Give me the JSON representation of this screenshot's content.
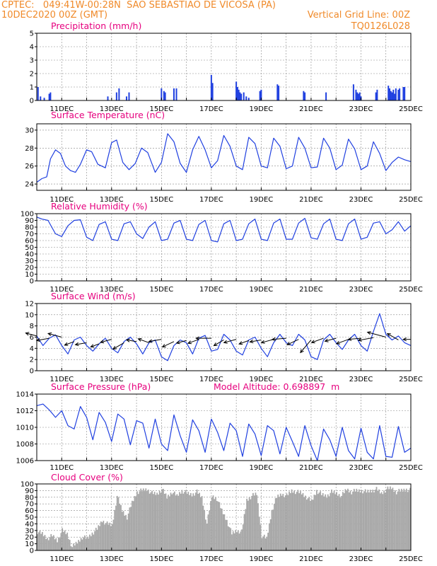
{
  "header": {
    "line1_left": "CPTEC:   049:41W-00:28N  SAO SEBASTIAO DE VICOSA (PA)",
    "line2_left": "10DEC2020 00Z (GMT)",
    "line1_right": "Vertical Grid Line: 00Z",
    "line2_right": "TQ0126L028"
  },
  "x_axis": {
    "start_day": 10,
    "end_day": 25,
    "tick_labels": [
      "11DEC",
      "13DEC",
      "15DEC",
      "17DEC",
      "19DEC",
      "21DEC",
      "23DEC",
      "25DEC"
    ],
    "tick_days": [
      11,
      13,
      15,
      17,
      19,
      21,
      23,
      25
    ]
  },
  "colors": {
    "line": "#2040e0",
    "bar": "#2040e0",
    "cloud": "#a8a8a8",
    "wind_arrow": "#000000"
  },
  "chart_data": [
    {
      "type": "bar",
      "name": "precipitation",
      "title": "Precipitation (mm/h)",
      "ylim": [
        0,
        5
      ],
      "yticks": [
        0,
        1,
        2,
        3,
        4,
        5
      ],
      "x": [
        10.05,
        10.15,
        10.3,
        10.5,
        10.55,
        12.85,
        13.2,
        13.3,
        13.6,
        13.7,
        15.0,
        15.1,
        15.15,
        15.5,
        15.6,
        17.0,
        17.05,
        18.0,
        18.05,
        18.1,
        18.15,
        18.2,
        18.3,
        18.4,
        18.5,
        18.95,
        19.0,
        19.65,
        19.7,
        20.7,
        20.75,
        21.6,
        22.7,
        22.8,
        22.85,
        22.9,
        22.95,
        23.0,
        23.6,
        23.65,
        24.1,
        24.15,
        24.2,
        24.25,
        24.3,
        24.35,
        24.4,
        24.5,
        24.55,
        24.7,
        24.75
      ],
      "values": [
        1.0,
        0.3,
        0.2,
        0.5,
        0.6,
        0.3,
        0.6,
        0.9,
        0.3,
        0.6,
        0.9,
        0.7,
        0.6,
        0.9,
        0.9,
        1.9,
        1.3,
        1.4,
        1.0,
        0.8,
        0.6,
        0.5,
        0.6,
        0.3,
        0.2,
        0.7,
        0.8,
        1.2,
        1.1,
        0.7,
        0.6,
        0.6,
        1.2,
        0.8,
        0.6,
        0.5,
        0.6,
        0.3,
        0.6,
        0.8,
        1.1,
        0.9,
        0.7,
        0.6,
        0.8,
        0.5,
        0.9,
        0.8,
        0.9,
        1.0,
        1.0
      ]
    },
    {
      "type": "line",
      "name": "surface_temperature",
      "title": "Surface Temperature (nC)",
      "ylim": [
        23.3,
        30.7
      ],
      "yticks": [
        24,
        26,
        28,
        30
      ],
      "x": [
        10.0,
        10.2,
        10.4,
        10.55,
        10.75,
        10.95,
        11.15,
        11.35,
        11.55,
        11.75,
        12.0,
        12.2,
        12.45,
        12.75,
        13.0,
        13.2,
        13.45,
        13.7,
        13.95,
        14.2,
        14.45,
        14.75,
        15.0,
        15.25,
        15.5,
        15.75,
        16.0,
        16.25,
        16.5,
        16.75,
        17.0,
        17.25,
        17.5,
        17.75,
        18.0,
        18.25,
        18.5,
        18.75,
        19.0,
        19.25,
        19.5,
        19.75,
        20.0,
        20.25,
        20.5,
        20.75,
        21.0,
        21.25,
        21.5,
        21.75,
        22.0,
        22.25,
        22.5,
        22.75,
        23.0,
        23.25,
        23.5,
        23.75,
        24.0,
        24.25,
        24.5,
        24.75,
        25.0
      ],
      "values": [
        24.2,
        24.6,
        24.8,
        26.8,
        27.8,
        27.4,
        26.0,
        25.5,
        25.3,
        26.2,
        27.8,
        27.6,
        26.2,
        25.8,
        28.6,
        28.9,
        26.4,
        25.6,
        26.3,
        28.0,
        27.5,
        25.3,
        26.4,
        29.6,
        28.7,
        26.3,
        25.3,
        27.8,
        29.3,
        27.8,
        25.8,
        26.6,
        29.4,
        28.2,
        26.0,
        25.6,
        29.2,
        28.5,
        26.0,
        25.8,
        29.1,
        28.2,
        25.7,
        26.0,
        29.2,
        28.0,
        25.8,
        25.9,
        29.1,
        28.0,
        25.6,
        26.1,
        29.0,
        27.9,
        25.6,
        26.0,
        28.7,
        27.4,
        25.5,
        26.4,
        27.0,
        26.7,
        26.5
      ]
    },
    {
      "type": "line",
      "name": "relative_humidity",
      "title": "Relative Humidity (%)",
      "ylim": [
        0,
        100
      ],
      "yticks": [
        0,
        10,
        20,
        30,
        40,
        50,
        60,
        70,
        80,
        90,
        100
      ],
      "x": [
        10.0,
        10.2,
        10.45,
        10.75,
        11.0,
        11.25,
        11.5,
        11.75,
        12.0,
        12.25,
        12.5,
        12.75,
        13.0,
        13.25,
        13.5,
        13.75,
        14.0,
        14.25,
        14.5,
        14.75,
        15.0,
        15.25,
        15.5,
        15.75,
        16.0,
        16.25,
        16.5,
        16.75,
        17.0,
        17.25,
        17.5,
        17.75,
        18.0,
        18.25,
        18.5,
        18.75,
        19.0,
        19.25,
        19.5,
        19.75,
        20.0,
        20.25,
        20.5,
        20.75,
        21.0,
        21.25,
        21.5,
        21.75,
        22.0,
        22.25,
        22.5,
        22.75,
        23.0,
        23.25,
        23.5,
        23.75,
        24.0,
        24.25,
        24.5,
        24.75,
        25.0
      ],
      "values": [
        95,
        92,
        90,
        70,
        66,
        82,
        90,
        91,
        65,
        60,
        84,
        88,
        62,
        60,
        85,
        88,
        70,
        63,
        80,
        88,
        60,
        62,
        86,
        90,
        62,
        60,
        84,
        90,
        60,
        58,
        85,
        90,
        60,
        62,
        85,
        92,
        62,
        60,
        86,
        92,
        62,
        62,
        86,
        93,
        64,
        62,
        85,
        92,
        62,
        60,
        85,
        92,
        62,
        65,
        86,
        88,
        70,
        76,
        88,
        74,
        82
      ]
    },
    {
      "type": "line",
      "name": "surface_wind",
      "title": "Surface Wind (m/s)",
      "ylim": [
        0,
        12
      ],
      "yticks": [
        0,
        2,
        4,
        6,
        8,
        10,
        12
      ],
      "x": [
        10.0,
        10.25,
        10.5,
        10.75,
        11.0,
        11.25,
        11.5,
        11.75,
        12.0,
        12.25,
        12.5,
        12.75,
        13.0,
        13.25,
        13.5,
        13.75,
        14.0,
        14.25,
        14.5,
        14.75,
        15.0,
        15.25,
        15.5,
        15.75,
        16.0,
        16.25,
        16.5,
        16.75,
        17.0,
        17.25,
        17.5,
        17.75,
        18.0,
        18.25,
        18.5,
        18.75,
        19.0,
        19.25,
        19.5,
        19.75,
        20.0,
        20.25,
        20.5,
        20.75,
        21.0,
        21.25,
        21.5,
        21.75,
        22.0,
        22.25,
        22.5,
        22.75,
        23.0,
        23.25,
        23.5,
        23.75,
        24.0,
        24.25,
        24.5,
        24.75,
        25.0
      ],
      "values": [
        6.2,
        4.5,
        5.8,
        6.4,
        4.5,
        3.0,
        5.5,
        6.0,
        4.5,
        3.5,
        4.8,
        5.8,
        4.0,
        3.2,
        5.2,
        6.0,
        4.8,
        3.0,
        5.0,
        5.5,
        2.5,
        1.8,
        4.5,
        5.5,
        5.0,
        3.0,
        5.8,
        6.3,
        3.5,
        3.8,
        6.5,
        5.5,
        3.5,
        2.8,
        5.5,
        6.0,
        4.0,
        2.5,
        5.0,
        6.5,
        5.0,
        4.5,
        6.5,
        5.5,
        2.5,
        2.0,
        5.5,
        6.5,
        5.0,
        3.8,
        5.5,
        6.5,
        4.5,
        3.5,
        7.0,
        10.2,
        6.5,
        5.5,
        6.2,
        5.0,
        4.5
      ]
    },
    {
      "type": "line",
      "name": "surface_pressure",
      "title": "Surface Pressure (hPa)",
      "annotation": "Model Altitude: 0.698897  m",
      "ylim": [
        1006,
        1014
      ],
      "yticks": [
        1006,
        1008,
        1010,
        1012,
        1014
      ],
      "x": [
        10.0,
        10.25,
        10.5,
        10.75,
        11.0,
        11.25,
        11.5,
        11.75,
        12.0,
        12.25,
        12.5,
        12.75,
        13.0,
        13.25,
        13.5,
        13.75,
        14.0,
        14.25,
        14.5,
        14.75,
        15.0,
        15.25,
        15.5,
        15.75,
        16.0,
        16.25,
        16.5,
        16.75,
        17.0,
        17.25,
        17.5,
        17.75,
        18.0,
        18.25,
        18.5,
        18.75,
        19.0,
        19.25,
        19.5,
        19.75,
        20.0,
        20.25,
        20.5,
        20.75,
        21.0,
        21.25,
        21.5,
        21.75,
        22.0,
        22.25,
        22.5,
        22.75,
        23.0,
        23.25,
        23.5,
        23.75,
        24.0,
        24.25,
        24.5,
        24.75,
        25.0
      ],
      "values": [
        1012.6,
        1012.8,
        1012.1,
        1011.2,
        1012.0,
        1010.2,
        1009.8,
        1012.5,
        1011.2,
        1008.5,
        1011.8,
        1010.6,
        1008.3,
        1011.6,
        1011.0,
        1007.9,
        1010.8,
        1010.5,
        1007.5,
        1011.0,
        1008.0,
        1007.2,
        1011.5,
        1009.0,
        1007.0,
        1010.9,
        1009.6,
        1007.0,
        1011.0,
        1009.4,
        1007.2,
        1010.5,
        1009.6,
        1006.5,
        1010.4,
        1009.2,
        1006.6,
        1010.2,
        1009.6,
        1006.8,
        1010.0,
        1008.3,
        1006.5,
        1010.2,
        1007.8,
        1006.0,
        1009.8,
        1008.5,
        1006.5,
        1010.0,
        1007.2,
        1006.2,
        1009.9,
        1007.0,
        1006.2,
        1010.2,
        1006.5,
        1006.4,
        1010.1,
        1007.0,
        1007.5
      ]
    },
    {
      "type": "area",
      "name": "cloud_cover",
      "title": "Cloud Cover (%)",
      "ylim": [
        0,
        100
      ],
      "yticks": [
        0,
        10,
        20,
        30,
        40,
        50,
        60,
        70,
        80,
        90,
        100
      ],
      "x": [
        10.0,
        10.2,
        10.4,
        10.6,
        10.8,
        11.0,
        11.2,
        11.4,
        11.6,
        11.8,
        12.0,
        12.2,
        12.4,
        12.6,
        12.8,
        13.0,
        13.2,
        13.4,
        13.6,
        13.8,
        14.0,
        14.2,
        14.4,
        14.6,
        14.8,
        15.0,
        15.2,
        15.4,
        15.6,
        15.8,
        16.0,
        16.2,
        16.4,
        16.6,
        16.8,
        17.0,
        17.2,
        17.4,
        17.6,
        17.8,
        18.0,
        18.2,
        18.4,
        18.6,
        18.8,
        19.0,
        19.2,
        19.4,
        19.6,
        19.8,
        20.0,
        20.2,
        20.4,
        20.6,
        20.8,
        21.0,
        21.2,
        21.4,
        21.6,
        21.8,
        22.0,
        22.2,
        22.4,
        22.6,
        22.8,
        23.0,
        23.2,
        23.4,
        23.6,
        23.8,
        24.0,
        24.2,
        24.4,
        24.6,
        24.8,
        25.0
      ],
      "values": [
        28,
        25,
        18,
        22,
        15,
        30,
        25,
        5,
        12,
        20,
        18,
        26,
        32,
        45,
        40,
        38,
        82,
        60,
        50,
        72,
        88,
        90,
        92,
        86,
        85,
        92,
        80,
        88,
        82,
        90,
        86,
        84,
        88,
        80,
        40,
        82,
        78,
        60,
        45,
        25,
        30,
        28,
        76,
        82,
        85,
        22,
        18,
        60,
        80,
        85,
        82,
        90,
        88,
        86,
        80,
        74,
        90,
        84,
        82,
        88,
        86,
        82,
        92,
        88,
        90,
        90,
        88,
        90,
        92,
        86,
        92,
        94,
        88,
        90,
        92,
        90
      ]
    },
    {
      "type": "vector",
      "name": "wind_direction_arrows",
      "note": "arrow direction in degrees (0 = pointing east), length relative",
      "x": [
        10.0,
        10.5,
        11.0,
        11.5,
        12.0,
        12.5,
        13.0,
        13.5,
        14.0,
        14.5,
        15.0,
        15.5,
        16.0,
        16.5,
        17.0,
        17.5,
        18.0,
        18.5,
        19.0,
        19.5,
        20.0,
        20.5,
        21.0,
        21.5,
        22.0,
        22.5,
        23.0,
        23.5,
        24.0,
        24.5,
        25.0
      ],
      "y": [
        6.2,
        5.8,
        6.0,
        5.2,
        5.0,
        4.8,
        5.6,
        5.0,
        5.2,
        5.0,
        5.6,
        5.2,
        5.4,
        5.6,
        5.8,
        5.5,
        5.6,
        5.4,
        5.5,
        5.6,
        5.8,
        5.6,
        5.5,
        5.8,
        5.8,
        5.6,
        5.8,
        5.9,
        6.0,
        5.5,
        5.6
      ],
      "angle": [
        165,
        190,
        165,
        200,
        190,
        200,
        195,
        210,
        170,
        160,
        190,
        205,
        195,
        200,
        180,
        210,
        195,
        200,
        190,
        195,
        185,
        205,
        230,
        200,
        195,
        200,
        185,
        190,
        165,
        150,
        180
      ],
      "length": [
        0.9,
        1.0,
        1.1,
        0.8,
        0.9,
        0.7,
        0.9,
        1.0,
        0.8,
        0.9,
        1.0,
        1.0,
        0.8,
        0.9,
        1.2,
        0.9,
        1.0,
        0.8,
        0.9,
        1.0,
        1.1,
        1.0,
        1.3,
        1.0,
        0.9,
        1.0,
        1.0,
        1.2,
        1.5,
        1.0,
        0.6
      ]
    }
  ]
}
